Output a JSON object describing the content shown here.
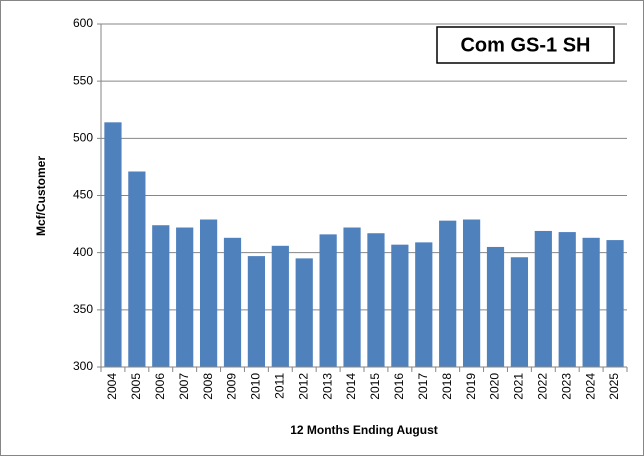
{
  "chart_data": {
    "type": "bar",
    "title": "Com GS-1 SH",
    "y_label": "Mcf/Customer",
    "x_label": "12 Months Ending August",
    "categories": [
      "2004",
      "2005",
      "2006",
      "2007",
      "2008",
      "2009",
      "2010",
      "2011",
      "2012",
      "2013",
      "2014",
      "2015",
      "2016",
      "2017",
      "2018",
      "2019",
      "2020",
      "2021",
      "2022",
      "2023",
      "2024",
      "2025"
    ],
    "values": [
      514,
      471,
      424,
      422,
      429,
      413,
      397,
      406,
      395,
      416,
      422,
      417,
      407,
      409,
      428,
      429,
      405,
      396,
      419,
      418,
      413,
      411
    ],
    "color": "#4f81bd",
    "ylim": [
      300,
      600
    ],
    "yticks": [
      300,
      350,
      400,
      450,
      500,
      550,
      600
    ],
    "grid": true
  }
}
